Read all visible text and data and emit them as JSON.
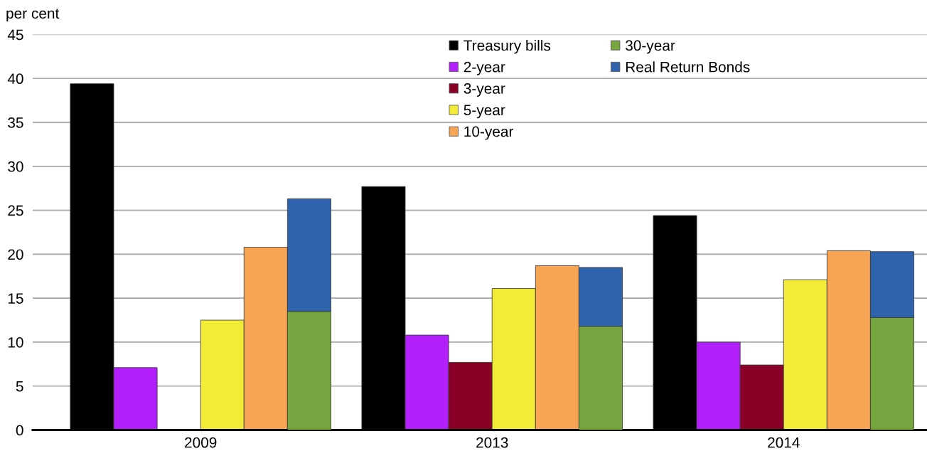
{
  "chart_data": [
    {
      "type": "bar",
      "ylabel": "per cent",
      "categories": [
        "2009",
        "2013",
        "2014"
      ],
      "series": [
        {
          "name": "Treasury bills",
          "color": "#000000",
          "values": [
            39.4,
            27.7,
            24.4
          ]
        },
        {
          "name": "2-year",
          "color": "#b31ffb",
          "values": [
            7.1,
            10.8,
            10.0
          ]
        },
        {
          "name": "3-year",
          "color": "#8a0027",
          "values": [
            null,
            7.7,
            7.4
          ]
        },
        {
          "name": "5-year",
          "color": "#f2ec36",
          "values": [
            12.5,
            16.1,
            17.1
          ]
        },
        {
          "name": "10-year",
          "color": "#f7a455",
          "values": [
            20.8,
            18.7,
            20.4
          ]
        }
      ],
      "ylim": [
        0,
        45
      ],
      "yticks": [
        0,
        5,
        10,
        15,
        20,
        25,
        30,
        35,
        40,
        45
      ],
      "grid": "y",
      "legend": "top"
    },
    {
      "type": "bar",
      "stacked": true,
      "categories": [
        "2009",
        "2013",
        "2014"
      ],
      "series": [
        {
          "name": "30-year",
          "color": "#76a43e",
          "values": [
            13.5,
            11.8,
            12.8
          ]
        },
        {
          "name": "Real Return Bonds",
          "color": "#2f63ad",
          "values": [
            12.8,
            6.7,
            7.5
          ]
        }
      ],
      "ylim": [
        0,
        45
      ],
      "tick_labels": false,
      "legend": "top"
    }
  ]
}
